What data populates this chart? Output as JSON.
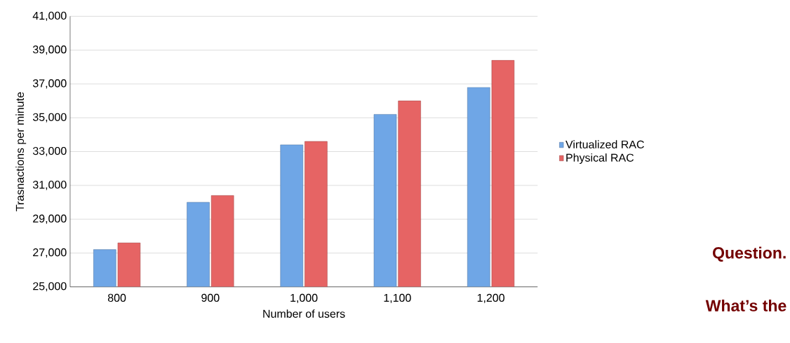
{
  "chart_data": {
    "type": "bar",
    "xlabel": "Number of users",
    "ylabel": "Trasnactions per minute",
    "categories": [
      "800",
      "900",
      "1,000",
      "1,100",
      "1,200"
    ],
    "series": [
      {
        "name": "Virtualized RAC",
        "color": "#6fa6e6",
        "values": [
          27200,
          30000,
          33400,
          35200,
          36800
        ]
      },
      {
        "name": "Physical RAC",
        "color": "#e66464",
        "values": [
          27600,
          30400,
          33600,
          36000,
          38400
        ]
      }
    ],
    "ylim": [
      25000,
      41000
    ],
    "yticks": [
      {
        "value": 25000,
        "label": "25,000"
      },
      {
        "value": 27000,
        "label": "27,000"
      },
      {
        "value": 29000,
        "label": "29,000"
      },
      {
        "value": 31000,
        "label": "31,000"
      },
      {
        "value": 33000,
        "label": "33,000"
      },
      {
        "value": 35000,
        "label": "35,000"
      },
      {
        "value": 37000,
        "label": "37,000"
      },
      {
        "value": 39000,
        "label": "39,000"
      },
      {
        "value": 41000,
        "label": "41,000"
      }
    ],
    "grid": "y",
    "legend": "right",
    "annotations": [
      "Question.",
      "What’s the"
    ]
  }
}
